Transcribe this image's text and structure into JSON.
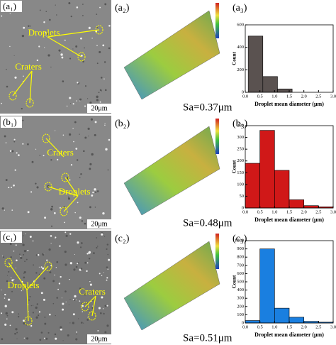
{
  "panels": [
    {
      "sem": {
        "label": "(a₁)",
        "annotations": [
          "Droplets",
          "Craters"
        ],
        "scale_bar": "20μm"
      },
      "surface": {
        "label": "(a₂)",
        "sa": "Sa=0.37μm"
      }
    },
    {
      "sem": {
        "label": "(b₁)",
        "annotations": [
          "Craters",
          "Droplets"
        ],
        "scale_bar": "20μm"
      },
      "surface": {
        "label": "(b₂)",
        "sa": "Sa=0.48μm"
      }
    },
    {
      "sem": {
        "label": "(c₁)",
        "annotations": [
          "Droplets",
          "Craters"
        ],
        "scale_bar": "20μm"
      },
      "surface": {
        "label": "(c₂)",
        "sa": "Sa=0.51μm"
      }
    }
  ],
  "chart_data": [
    {
      "type": "histogram",
      "label": "(a₃)",
      "bins": [
        0.1,
        0.6,
        1.1,
        1.6
      ],
      "values": [
        500,
        140,
        30
      ],
      "color": "#5a5250",
      "xlim": [
        0,
        3
      ],
      "xticks": [
        {
          "value": 0,
          "label": "0.0"
        },
        0.5,
        {
          "value": 1,
          "label": "1.0"
        },
        1.5,
        {
          "value": 2,
          "label": "2.0"
        },
        2.5,
        {
          "value": 3,
          "label": "3.0"
        }
      ],
      "ylim": [
        0,
        600
      ],
      "yticks": [
        0,
        200,
        400,
        600
      ],
      "xlabel": "Droplet mean diameter (μm)",
      "ylabel": "Count"
    },
    {
      "type": "histogram",
      "label": "(b₃)",
      "bins": [
        0,
        0.5,
        1,
        1.5,
        2,
        2.5,
        3
      ],
      "values": [
        190,
        330,
        160,
        35,
        10,
        5
      ],
      "color": "#d01818",
      "xlim": [
        0,
        3
      ],
      "xticks": [
        {
          "value": 0,
          "label": "0.0"
        },
        0.5,
        {
          "value": 1,
          "label": "1.0"
        },
        1.5,
        {
          "value": 2,
          "label": "2.0"
        },
        2.5,
        {
          "value": 3,
          "label": "3.0"
        }
      ],
      "ylim": [
        0,
        350
      ],
      "yticks": [
        0,
        50,
        100,
        150,
        200,
        250,
        300,
        350
      ],
      "xlabel": "Droplet mean diameter (μm)",
      "ylabel": "Count"
    },
    {
      "type": "histogram",
      "label": "(c₃)",
      "bins": [
        0,
        0.5,
        1,
        1.5,
        2,
        2.5,
        3
      ],
      "values": [
        30,
        900,
        180,
        70,
        20,
        10
      ],
      "color": "#1a7fe0",
      "xlim": [
        0,
        3
      ],
      "xticks": [
        {
          "value": 0,
          "label": "0.0"
        },
        0.5,
        {
          "value": 1,
          "label": "1.0"
        },
        1.5,
        {
          "value": 2,
          "label": "2.0"
        },
        2.5,
        {
          "value": 3,
          "label": "3.0"
        }
      ],
      "ylim": [
        0,
        1000
      ],
      "yticks": [
        0,
        100,
        200,
        300,
        400,
        500,
        600,
        700,
        800,
        900,
        1000
      ],
      "xlabel": "Droplet mean diameter (μm)",
      "ylabel": "Count"
    }
  ]
}
